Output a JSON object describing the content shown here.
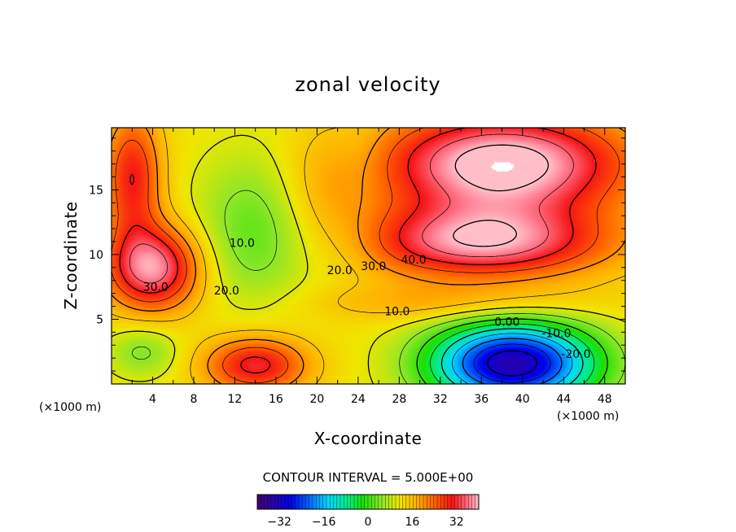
{
  "chart_data": {
    "type": "heatmap",
    "title": "zonal velocity",
    "xlabel": "X-coordinate",
    "ylabel": "Z-coordinate",
    "x_unit_left": "(×1000 m)",
    "x_unit_right": "(×1000 m)",
    "xlim": [
      0,
      50
    ],
    "ylim": [
      0,
      19.8
    ],
    "xticks": [
      4,
      8,
      12,
      16,
      20,
      24,
      28,
      32,
      36,
      40,
      44,
      48
    ],
    "yticks": [
      5,
      10,
      15
    ],
    "variable": "zonal velocity",
    "value_range": [
      -40,
      40
    ],
    "contour_interval_text": "CONTOUR INTERVAL = 5.000E+00",
    "contour_interval": 5,
    "contour_labels": [
      {
        "text": "30.0",
        "x": 4.3,
        "z": 7.2
      },
      {
        "text": "20.0",
        "x": 11.2,
        "z": 6.9
      },
      {
        "text": "10.0",
        "x": 12.7,
        "z": 10.6
      },
      {
        "text": "20.0",
        "x": 22.2,
        "z": 8.5
      },
      {
        "text": "30.0",
        "x": 25.5,
        "z": 8.8
      },
      {
        "text": "40.0",
        "x": 29.4,
        "z": 9.3
      },
      {
        "text": "10.0",
        "x": 27.8,
        "z": 5.3
      },
      {
        "text": "0.00",
        "x": 38.5,
        "z": 4.5
      },
      {
        "text": "-10.0",
        "x": 43.3,
        "z": 3.6
      },
      {
        "text": "-20.0",
        "x": 45.2,
        "z": 2.0
      }
    ],
    "colorbar": {
      "ticks": [
        "−32",
        "−16",
        "0",
        "16",
        "32"
      ],
      "tick_values": [
        -32,
        -16,
        0,
        16,
        32
      ],
      "range": [
        -40,
        40
      ]
    }
  }
}
